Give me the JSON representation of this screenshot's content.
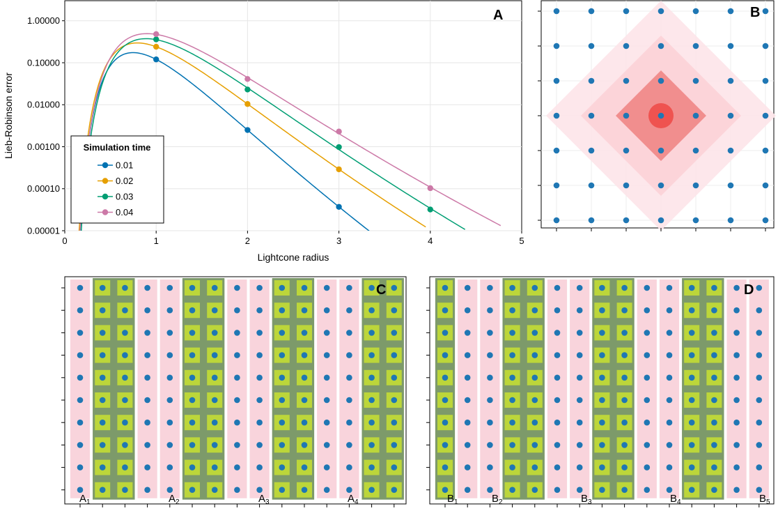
{
  "chart_data": [
    {
      "panel": "A",
      "type": "line",
      "xlabel": "Lightcone radius",
      "ylabel": "Lieb-Robinson error",
      "yscale": "log",
      "xlim": [
        0,
        5
      ],
      "ylim": [
        1e-05,
        3.0
      ],
      "x_ticks": [
        "0",
        "1",
        "2",
        "3",
        "4",
        "5"
      ],
      "y_ticks": [
        "1.00000",
        "0.10000",
        "0.01000",
        "0.00100",
        "0.00010",
        "0.00001"
      ],
      "grid": true,
      "legend": {
        "title": "Simulation time",
        "placement": "bottom-left"
      },
      "series": [
        {
          "name": "0.01",
          "color": "#0072b2",
          "x": [
            1,
            2,
            3
          ],
          "y": [
            0.12,
            0.0025,
            3.7e-05
          ],
          "curve_end_x": 3.3
        },
        {
          "name": "0.02",
          "color": "#e69f00",
          "x": [
            1,
            2,
            3
          ],
          "y": [
            0.24,
            0.0104,
            0.00029
          ],
          "curve_end_x": 3.9
        },
        {
          "name": "0.03",
          "color": "#009e73",
          "x": [
            1,
            2,
            3,
            4
          ],
          "y": [
            0.36,
            0.023,
            0.00098,
            3.2e-05
          ],
          "curve_end_x": 4.33
        },
        {
          "name": "0.04",
          "color": "#cc79a7",
          "x": [
            1,
            2,
            3,
            4
          ],
          "y": [
            0.48,
            0.041,
            0.0023,
            0.000103
          ],
          "curve_end_x": 4.72
        }
      ]
    },
    {
      "panel": "B",
      "type": "scatter",
      "description_grid": "7x7 lattice of sites with diamond-shaped lightcones centered on the middle site",
      "grid_size": [
        7,
        7
      ],
      "center_site": [
        3,
        3
      ],
      "lightcone_radii": [
        1,
        2,
        3
      ],
      "colors": {
        "site": "#1f77b4",
        "center": "#ef5350",
        "cone1": "#f08a8a",
        "cone2": "#fcd3d8",
        "cone3": "#fde6ea"
      }
    },
    {
      "panel": "C",
      "type": "scatter",
      "grid_size": [
        15,
        10
      ],
      "region_labels": [
        {
          "base": "A",
          "sub": "1"
        },
        {
          "base": "A",
          "sub": "2"
        },
        {
          "base": "A",
          "sub": "3"
        },
        {
          "base": "A",
          "sub": "4"
        }
      ],
      "green_column_pairs": [
        [
          1,
          2
        ],
        [
          5,
          6
        ],
        [
          9,
          10
        ],
        [
          13,
          14
        ]
      ],
      "colors": {
        "site": "#1f77b4",
        "pink": "#f9d4dc",
        "green_fill": "#bcd63a",
        "green_border": "#7d9a6a"
      }
    },
    {
      "panel": "D",
      "type": "scatter",
      "grid_size": [
        15,
        10
      ],
      "region_labels": [
        {
          "base": "B",
          "sub": "1"
        },
        {
          "base": "B",
          "sub": "2"
        },
        {
          "base": "B",
          "sub": "3"
        },
        {
          "base": "B",
          "sub": "4"
        },
        {
          "base": "B",
          "sub": "5"
        }
      ],
      "green_column_pairs": [
        [
          0,
          0
        ],
        [
          3,
          4
        ],
        [
          7,
          8
        ],
        [
          11,
          12
        ]
      ],
      "colors": {
        "site": "#1f77b4",
        "pink": "#f9d4dc",
        "green_fill": "#bcd63a",
        "green_border": "#7d9a6a"
      }
    }
  ],
  "panel_letters": {
    "a": "A",
    "b": "B",
    "c": "C",
    "d": "D"
  }
}
